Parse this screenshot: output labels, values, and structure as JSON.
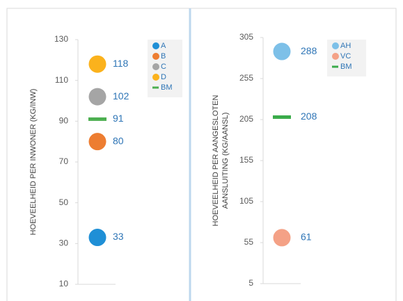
{
  "chart_data": [
    {
      "type": "dot",
      "ylabel": [
        "HOEVEELHEID PER INWONER (KG/INW)"
      ],
      "ylim": [
        10,
        130
      ],
      "yticks": [
        10,
        30,
        50,
        70,
        90,
        110,
        130
      ],
      "series": [
        {
          "name": "A",
          "color": "#1f8fd6",
          "values": [
            33
          ]
        },
        {
          "name": "B",
          "color": "#ed7d31",
          "values": [
            80
          ]
        },
        {
          "name": "C",
          "color": "#a5a5a5",
          "values": [
            102
          ]
        },
        {
          "name": "D",
          "color": "#fbb21c",
          "values": [
            118
          ]
        },
        {
          "name": "BM",
          "color": "#4caf50",
          "marker": "dash",
          "values": [
            91
          ]
        }
      ]
    },
    {
      "type": "dot",
      "ylabel": [
        "HOEVEELHEID PER AANGESLOTEN",
        "AANSLUITING (KG/AANSL)"
      ],
      "ylim": [
        5,
        305
      ],
      "yticks": [
        5,
        55,
        105,
        155,
        205,
        255,
        305
      ],
      "series": [
        {
          "name": "AH",
          "color": "#7dc0e8",
          "values": [
            288
          ]
        },
        {
          "name": "VC",
          "color": "#f4a186",
          "values": [
            61
          ]
        },
        {
          "name": "BM",
          "color": "#3aab4a",
          "marker": "dash",
          "values": [
            208
          ]
        }
      ]
    }
  ]
}
